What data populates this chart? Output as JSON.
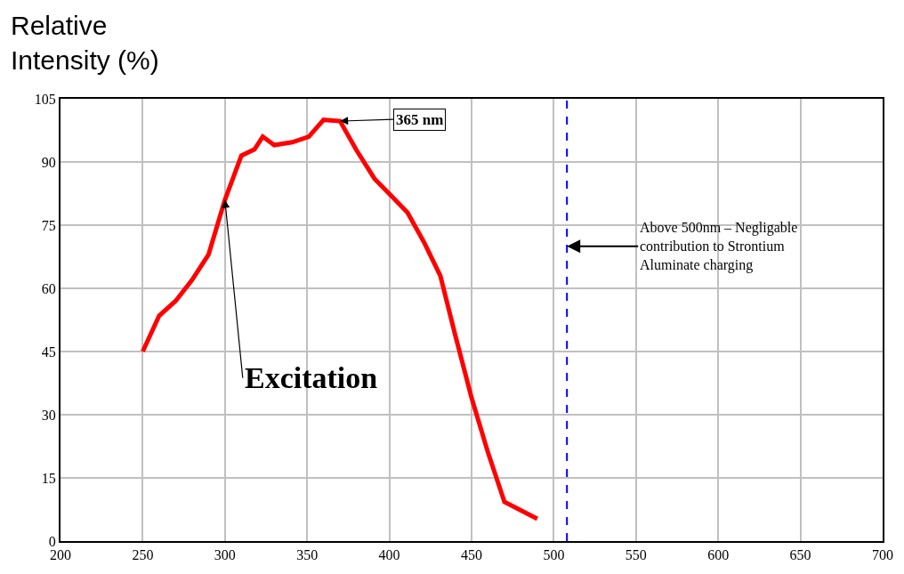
{
  "chart_data": {
    "type": "line",
    "ylabel": "Relative\nIntensity (%)",
    "x": [
      250,
      260,
      270,
      280,
      290,
      300,
      310,
      318,
      323,
      330,
      341,
      351,
      360,
      370,
      380,
      391,
      401,
      411,
      421,
      431,
      440,
      450,
      460,
      470,
      490
    ],
    "series": [
      {
        "color": "#ff0000",
        "values": [
          45,
          53.5,
          57,
          62,
          68,
          81,
          91.5,
          93,
          96,
          94,
          94.7,
          96,
          100,
          99.7,
          92.8,
          86,
          82,
          78,
          71,
          63,
          49,
          34,
          21,
          9.3,
          5.3
        ]
      }
    ],
    "xlim": [
      200,
      700
    ],
    "xticks": [
      200,
      250,
      300,
      350,
      400,
      450,
      500,
      550,
      600,
      650,
      700
    ],
    "ylim": [
      0,
      105
    ],
    "yticks": [
      0,
      15,
      30,
      45,
      60,
      75,
      90,
      105
    ],
    "grid": true,
    "legend": false,
    "marker": "none",
    "line_style": "solid",
    "annotations": [
      {
        "text": "365 nm",
        "x": 370,
        "y": 99.7
      },
      {
        "text": "Excitation",
        "x": 300,
        "y": 81
      }
    ],
    "ref_lines": [
      {
        "axis": "x",
        "value": 508,
        "label": "Above 500nm – Negligable\ncontribution to Strontium\nAluminate charging",
        "color": "#0000ff",
        "line_style": "dashed"
      }
    ]
  }
}
